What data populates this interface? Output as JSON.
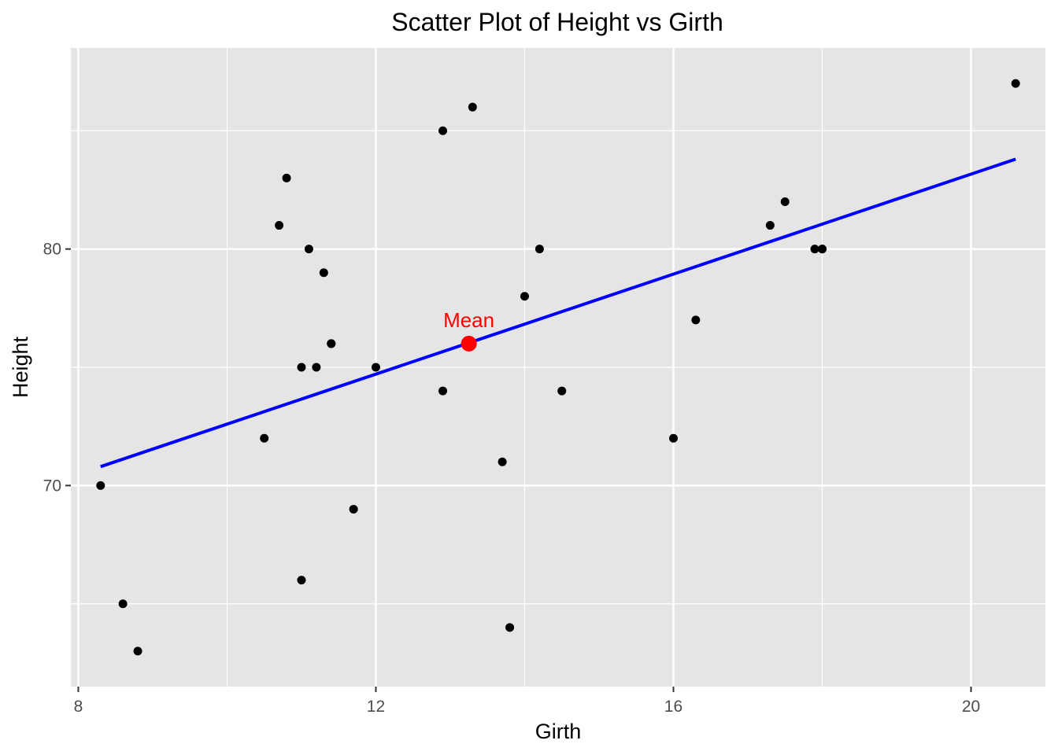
{
  "chart_data": {
    "type": "scatter",
    "title": "Scatter Plot of Height vs Girth",
    "xlabel": "Girth",
    "ylabel": "Height",
    "xlim": [
      7.9,
      21.0
    ],
    "ylim": [
      61.5,
      88.5
    ],
    "x_ticks": [
      8,
      12,
      16,
      20
    ],
    "x_tick_labels": [
      "8",
      "12",
      "16",
      "20"
    ],
    "x_minor_ticks": [
      10,
      14,
      18
    ],
    "y_ticks": [
      70,
      80
    ],
    "y_tick_labels": [
      "70",
      "80"
    ],
    "y_minor_ticks": [
      65,
      75,
      85
    ],
    "grid": true,
    "background_color": "#e5e5e5",
    "grid_color": "#ffffff",
    "point_color": "#000000",
    "points": [
      {
        "x": 8.3,
        "y": 70
      },
      {
        "x": 8.6,
        "y": 65
      },
      {
        "x": 8.8,
        "y": 63
      },
      {
        "x": 10.5,
        "y": 72
      },
      {
        "x": 10.7,
        "y": 81
      },
      {
        "x": 10.8,
        "y": 83
      },
      {
        "x": 11.0,
        "y": 66
      },
      {
        "x": 11.0,
        "y": 75
      },
      {
        "x": 11.1,
        "y": 80
      },
      {
        "x": 11.2,
        "y": 75
      },
      {
        "x": 11.3,
        "y": 79
      },
      {
        "x": 11.4,
        "y": 76
      },
      {
        "x": 11.4,
        "y": 76
      },
      {
        "x": 11.7,
        "y": 69
      },
      {
        "x": 12.0,
        "y": 75
      },
      {
        "x": 12.9,
        "y": 74
      },
      {
        "x": 12.9,
        "y": 85
      },
      {
        "x": 13.3,
        "y": 86
      },
      {
        "x": 13.7,
        "y": 71
      },
      {
        "x": 13.8,
        "y": 64
      },
      {
        "x": 14.0,
        "y": 78
      },
      {
        "x": 14.2,
        "y": 80
      },
      {
        "x": 14.5,
        "y": 74
      },
      {
        "x": 16.0,
        "y": 72
      },
      {
        "x": 16.3,
        "y": 77
      },
      {
        "x": 17.3,
        "y": 81
      },
      {
        "x": 17.5,
        "y": 82
      },
      {
        "x": 17.9,
        "y": 80
      },
      {
        "x": 18.0,
        "y": 80
      },
      {
        "x": 18.0,
        "y": 80
      },
      {
        "x": 20.6,
        "y": 87
      }
    ],
    "regression_line": {
      "color": "#0000ff",
      "x1": 8.3,
      "y1": 70.8,
      "x2": 20.6,
      "y2": 83.8
    },
    "mean_point": {
      "x": 13.25,
      "y": 76,
      "label": "Mean",
      "color": "#ff0000"
    }
  }
}
